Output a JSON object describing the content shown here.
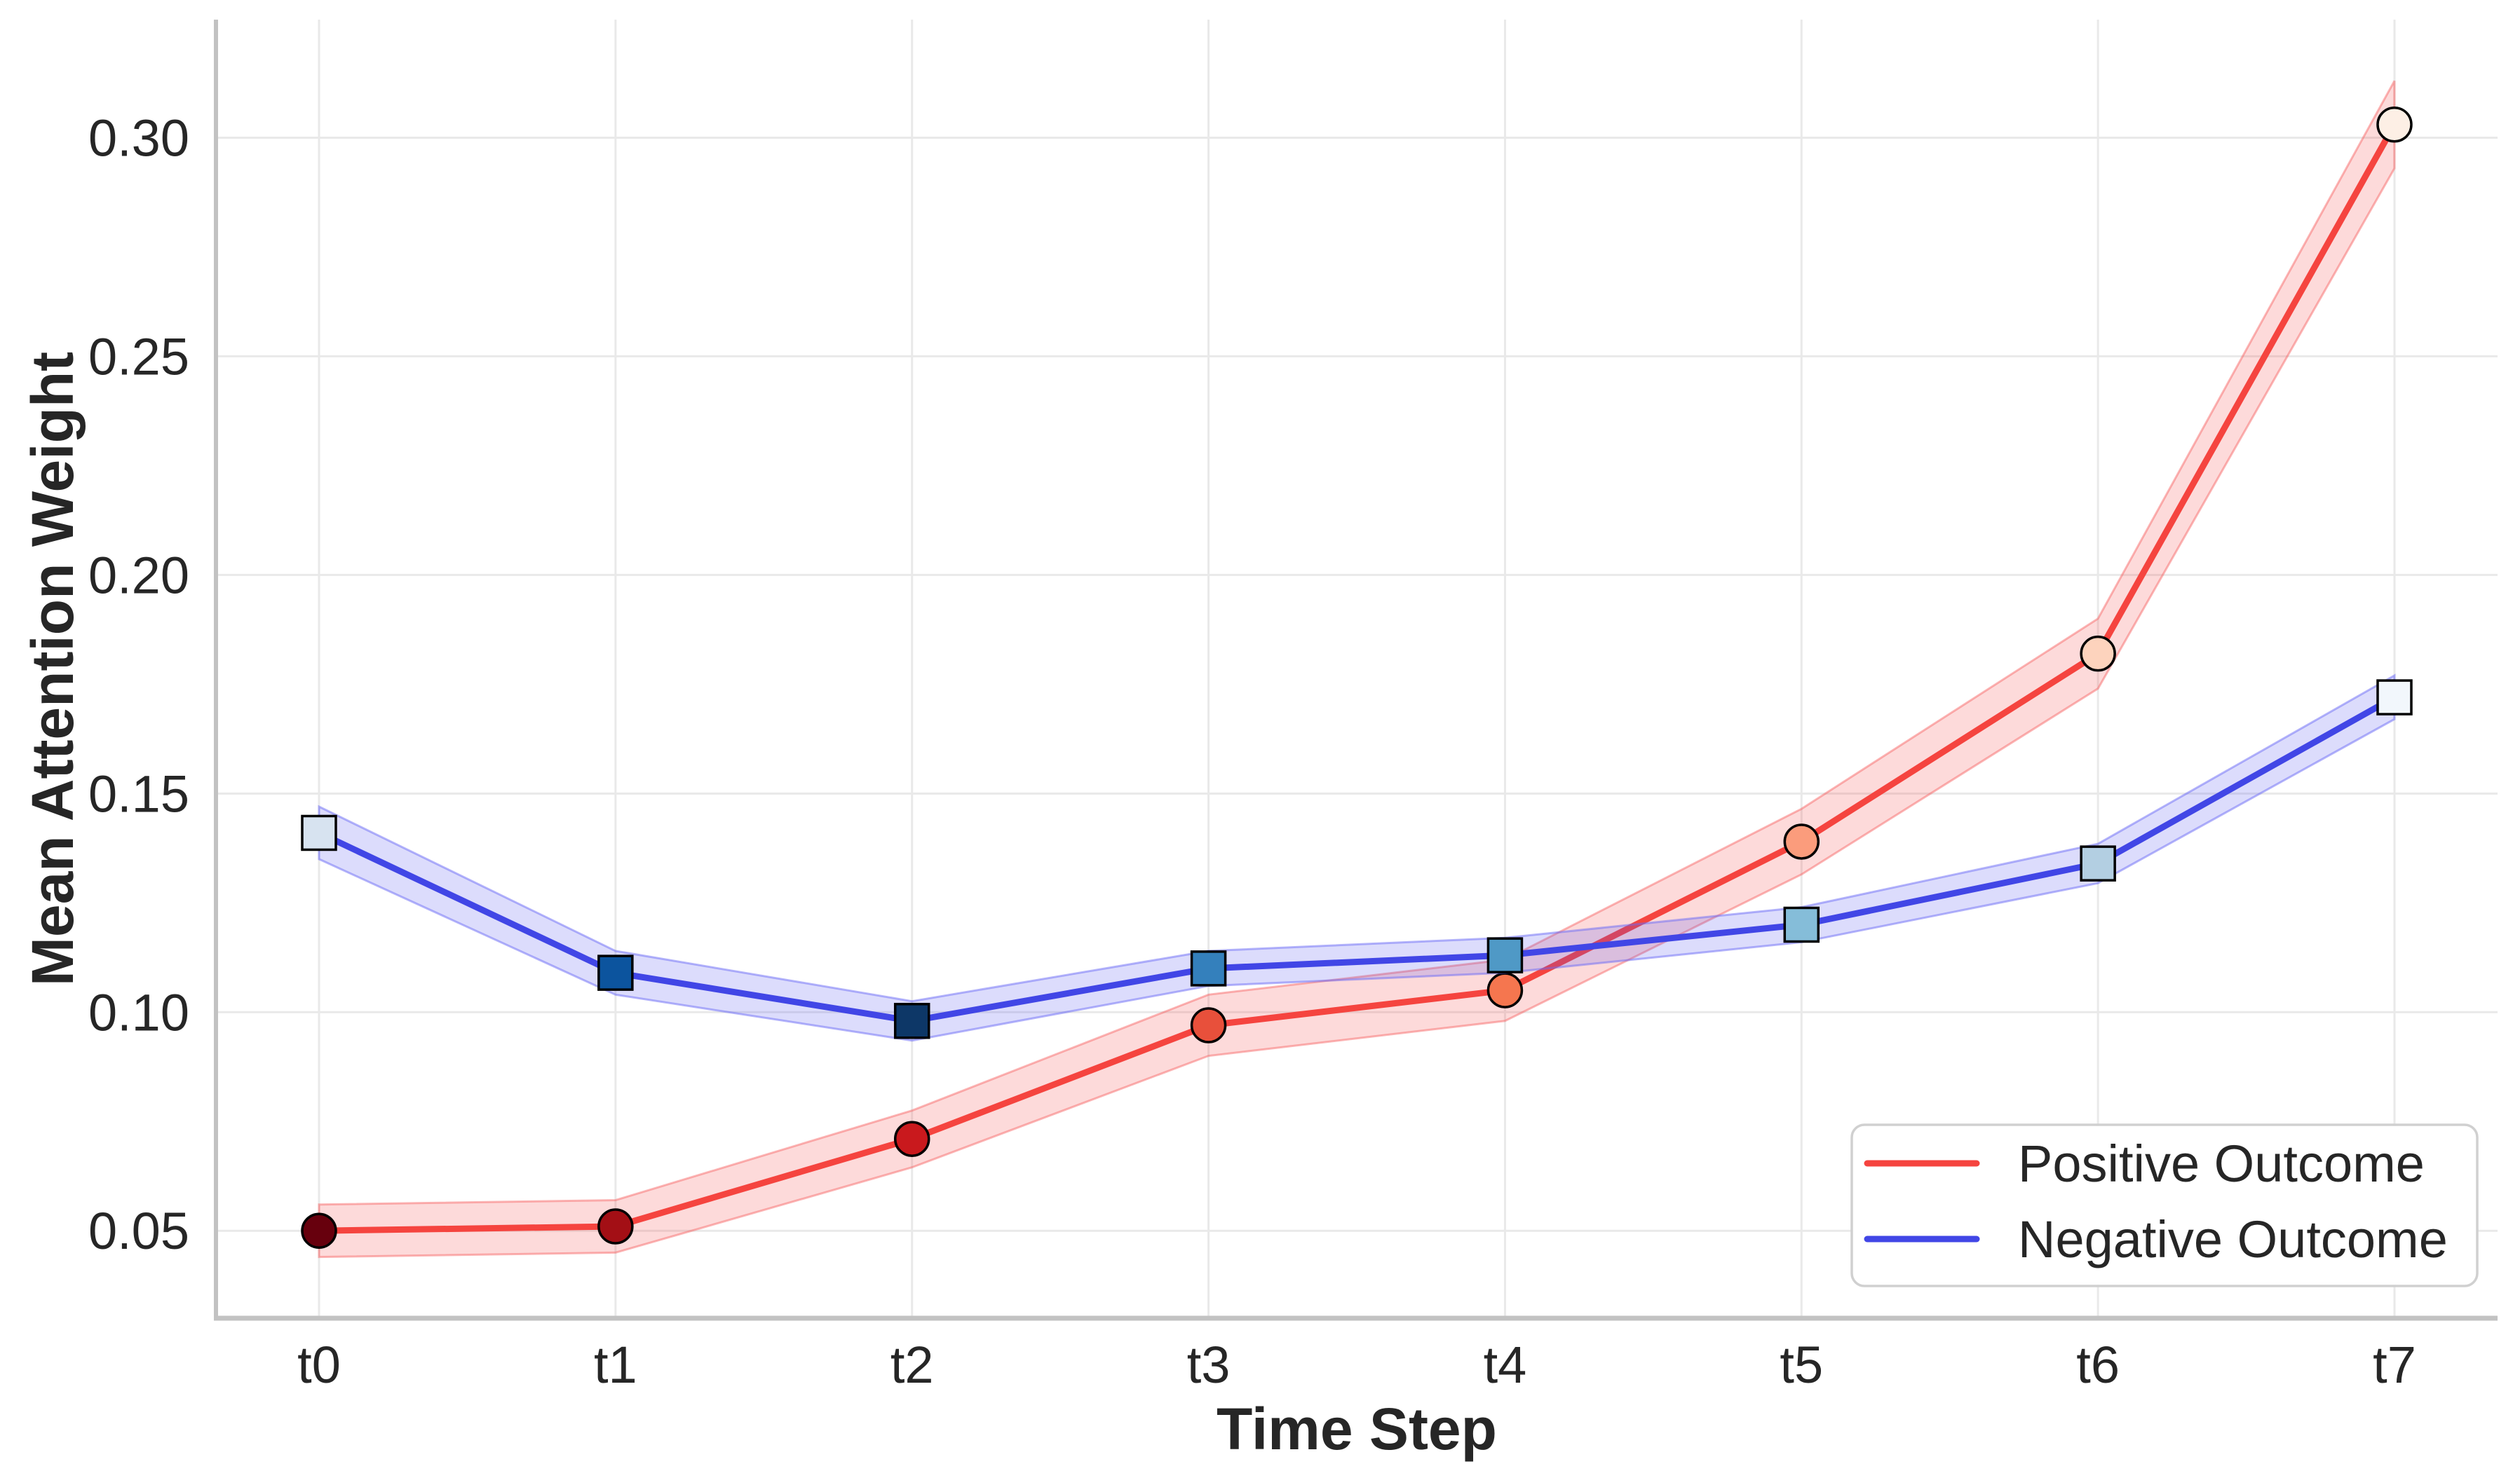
{
  "chart_data": {
    "type": "line",
    "title": "",
    "xlabel": "Time Step",
    "ylabel": "Mean Attention Weight",
    "categories": [
      "t0",
      "t1",
      "t2",
      "t3",
      "t4",
      "t5",
      "t6",
      "t7"
    ],
    "yticks": [
      0.05,
      0.1,
      0.15,
      0.2,
      0.25,
      0.3
    ],
    "ytick_labels": [
      "0.05",
      "0.10",
      "0.15",
      "0.20",
      "0.25",
      "0.30"
    ],
    "ylim": [
      0.03,
      0.327
    ],
    "grid": true,
    "grid_color": "#e9e9e9",
    "spine_color": "#c2c2c2",
    "background_color": "#ffffff",
    "text_color": "#262626",
    "legend": {
      "position": "lower right",
      "border_color": "#d0d0d0",
      "fill": "#ffffff",
      "labels": [
        "Positive Outcome",
        "Negative Outcome"
      ]
    },
    "series": [
      {
        "name": "Positive Outcome",
        "marker": "circle",
        "line_color": "#f5443f",
        "band_fill": "rgba(246,70,70,0.20)",
        "band_edge": "rgba(246,90,90,0.45)",
        "marker_edge": "#000000",
        "values": [
          0.05,
          0.051,
          0.071,
          0.097,
          0.105,
          0.139,
          0.182,
          0.303
        ],
        "ci": [
          0.006,
          0.006,
          0.0065,
          0.007,
          0.007,
          0.0075,
          0.008,
          0.01
        ],
        "marker_fills": [
          "#67000d",
          "#a30f15",
          "#c9191d",
          "#e8503b",
          "#f5764f",
          "#fb9c7c",
          "#fdd3bd",
          "#fdefe5"
        ]
      },
      {
        "name": "Negative Outcome",
        "marker": "square",
        "line_color": "#4146e6",
        "band_fill": "rgba(80,80,240,0.20)",
        "band_edge": "rgba(105,105,245,0.50)",
        "marker_edge": "#000000",
        "values": [
          0.141,
          0.109,
          0.098,
          0.11,
          0.113,
          0.12,
          0.134,
          0.172
        ],
        "ci": [
          0.006,
          0.005,
          0.0045,
          0.004,
          0.004,
          0.004,
          0.0045,
          0.005
        ],
        "marker_fills": [
          "#d7e3f0",
          "#0c549e",
          "#0d3767",
          "#3480bc",
          "#4f99c6",
          "#85bdd9",
          "#b3cfe2",
          "#f2f7fc"
        ]
      }
    ]
  }
}
